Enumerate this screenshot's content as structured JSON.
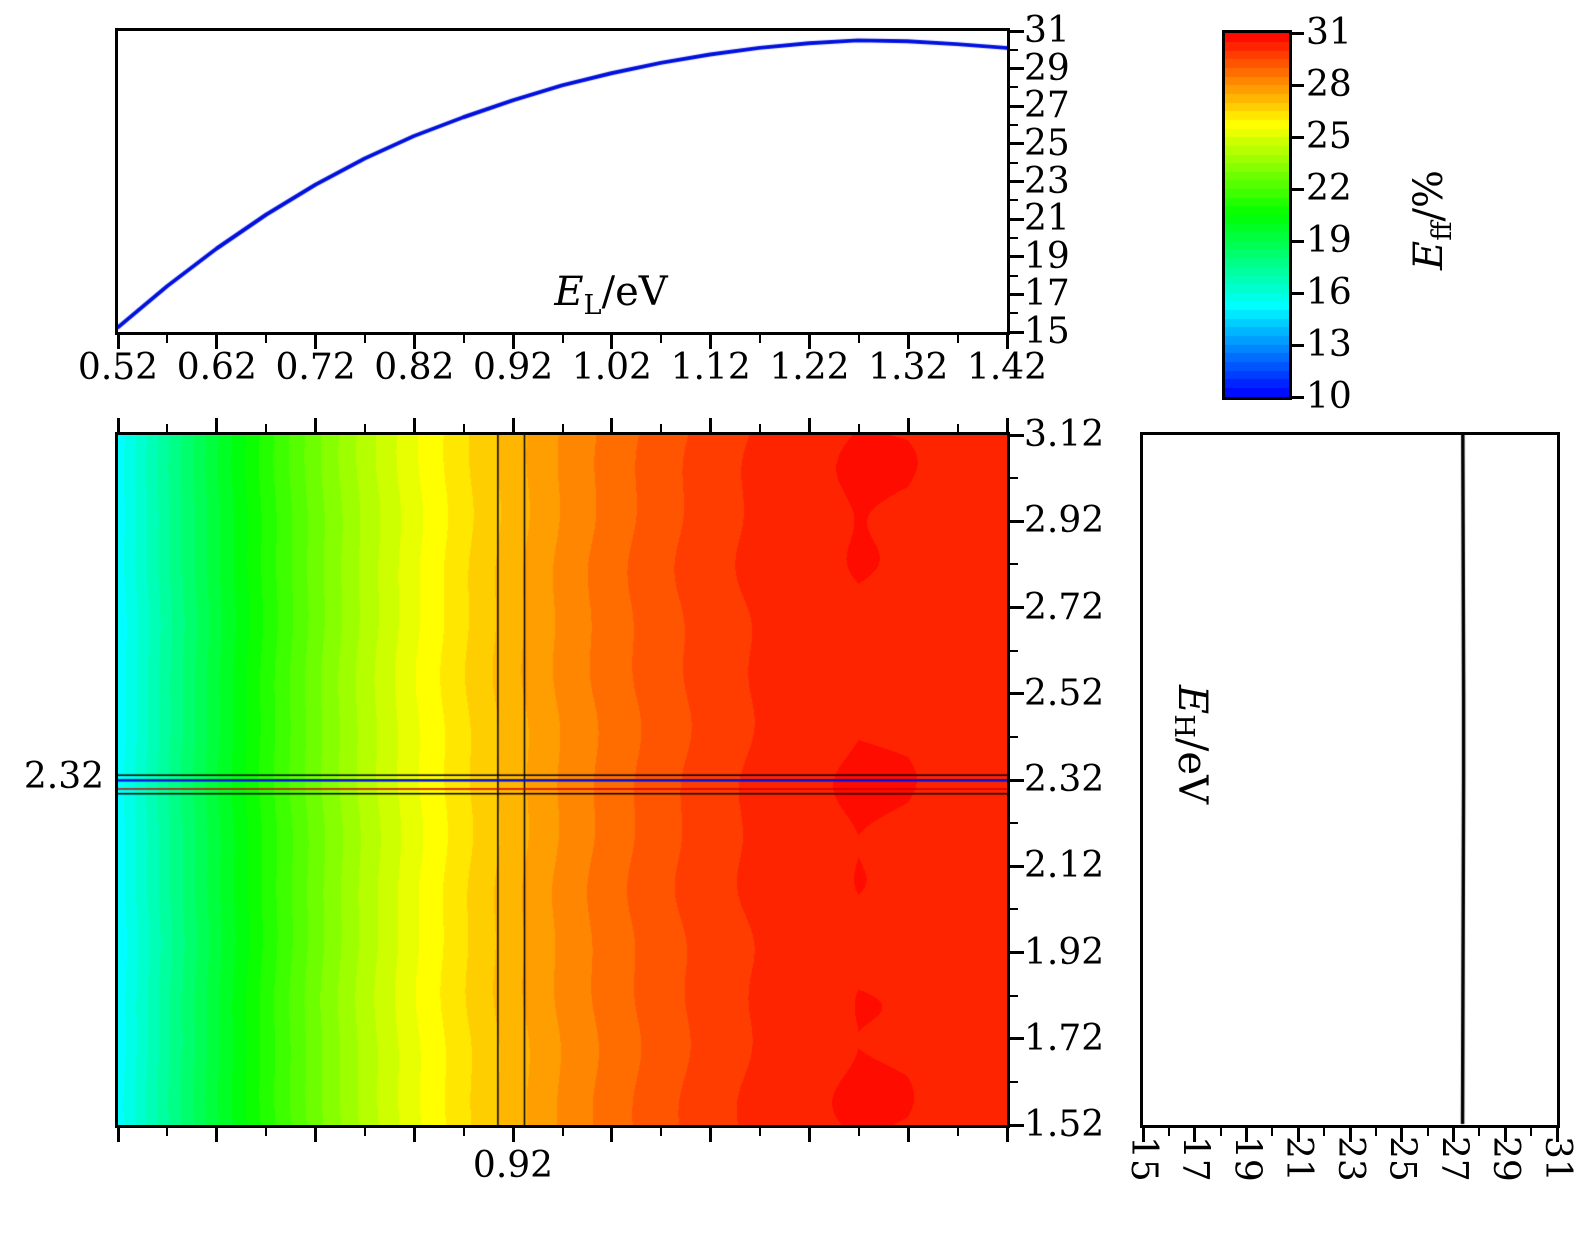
{
  "figure": {
    "background": "#ffffff",
    "curve_color": "#0011dd",
    "line_color": "#000000"
  },
  "labels": {
    "top_xlabel": {
      "var": "E",
      "sub": "L",
      "unit": "/eV"
    },
    "right_ylabel": {
      "var": "E",
      "sub": "H",
      "unit": "/eV"
    },
    "colorbar_label": {
      "var": "E",
      "sub": "ff",
      "unit": "/%"
    }
  },
  "crosshair": {
    "x_label": "0.92",
    "y_label": "2.32",
    "EL": 0.92,
    "EH": 2.32
  },
  "axes": {
    "EL": {
      "range": [
        0.52,
        1.42
      ],
      "tick_labels": [
        "0.52",
        "0.62",
        "0.72",
        "0.82",
        "0.92",
        "1.02",
        "1.12",
        "1.22",
        "1.32",
        "1.42"
      ]
    },
    "EH": {
      "range": [
        1.52,
        3.12
      ],
      "tick_labels": [
        "1.52",
        "1.72",
        "1.92",
        "2.12",
        "2.32",
        "2.52",
        "2.72",
        "2.92",
        "3.12"
      ]
    },
    "eff": {
      "range": [
        15,
        31
      ],
      "tick_labels": [
        "15",
        "17",
        "19",
        "21",
        "23",
        "25",
        "27",
        "29",
        "31"
      ]
    },
    "colorbar": {
      "range": [
        10,
        31
      ],
      "tick_labels": [
        "10",
        "13",
        "16",
        "19",
        "22",
        "25",
        "28",
        "31"
      ]
    }
  },
  "chart_data": [
    {
      "id": "top_line",
      "type": "line",
      "title": "",
      "xlabel": "E_L/eV",
      "ylabel": "E_ff/%",
      "xlim": [
        0.52,
        1.42
      ],
      "ylim": [
        15,
        31
      ],
      "x": [
        0.52,
        0.57,
        0.62,
        0.67,
        0.72,
        0.77,
        0.82,
        0.87,
        0.92,
        0.97,
        1.02,
        1.07,
        1.12,
        1.17,
        1.22,
        1.27,
        1.32,
        1.37,
        1.42
      ],
      "y": [
        15.2,
        17.4,
        19.4,
        21.2,
        22.8,
        24.2,
        25.4,
        26.4,
        27.3,
        28.1,
        28.75,
        29.3,
        29.75,
        30.1,
        30.35,
        30.5,
        30.45,
        30.3,
        30.1
      ],
      "color": "#0011dd"
    },
    {
      "id": "heatmap",
      "type": "heatmap",
      "xlabel": "E_L/eV",
      "ylabel": "E_H/eV",
      "xlim": [
        0.52,
        1.42
      ],
      "ylim": [
        1.52,
        3.12
      ],
      "value_range": [
        10,
        31
      ],
      "band_step": 0.5,
      "colormap": "rainbow blue-to-red",
      "note": "Efficiency varies mainly with E_L; nearly constant versus E_H",
      "eff_profile": {
        "EL": [
          0.52,
          0.57,
          0.62,
          0.67,
          0.72,
          0.77,
          0.82,
          0.87,
          0.92,
          0.97,
          1.02,
          1.07,
          1.12,
          1.17,
          1.22,
          1.27,
          1.32,
          1.37,
          1.42
        ],
        "eff": [
          15.2,
          17.4,
          19.4,
          21.2,
          22.8,
          24.2,
          25.4,
          26.4,
          27.3,
          28.1,
          28.75,
          29.3,
          29.75,
          30.1,
          30.35,
          30.5,
          30.45,
          30.3,
          30.1
        ]
      },
      "marker_EL": [
        0.905,
        0.932
      ],
      "marker_EH": [
        2.33,
        2.287
      ],
      "marker_inner": {
        "blue_EH": 2.318,
        "red_EH": 2.298
      }
    },
    {
      "id": "right_line",
      "type": "line",
      "xlabel": "E_ff/%",
      "ylabel": "E_H/eV",
      "xlim": [
        15,
        31
      ],
      "ylim": [
        1.52,
        3.12
      ],
      "EH": [
        1.52,
        1.72,
        1.92,
        2.12,
        2.32,
        2.52,
        2.72,
        2.92,
        3.12
      ],
      "eff": [
        27.38,
        27.39,
        27.4,
        27.41,
        27.42,
        27.42,
        27.41,
        27.4,
        27.39
      ],
      "color": "#000000"
    },
    {
      "id": "colorbar",
      "type": "colorbar",
      "range": [
        10,
        31
      ],
      "ticks": [
        10,
        13,
        16,
        19,
        22,
        25,
        28,
        31
      ],
      "label": "E_ff/%",
      "band_step": 0.5
    }
  ]
}
